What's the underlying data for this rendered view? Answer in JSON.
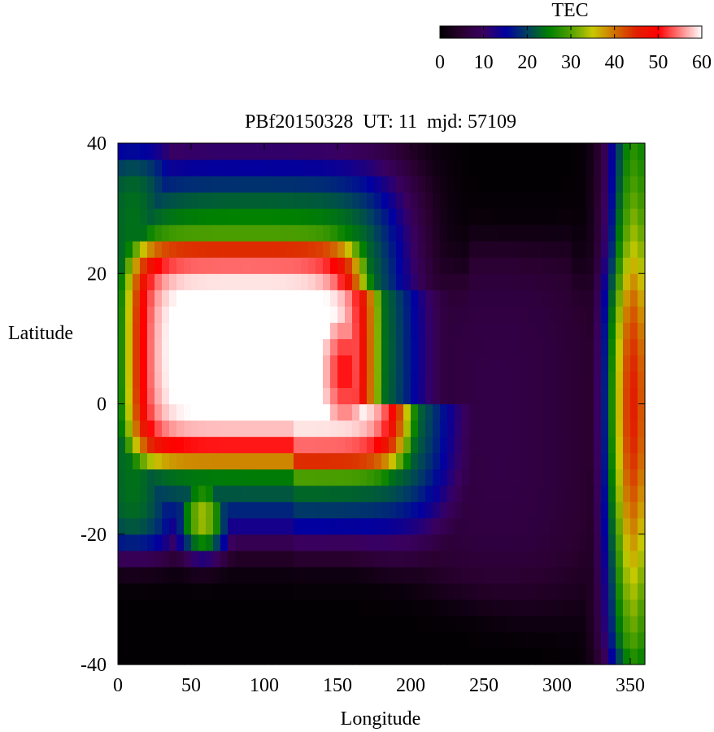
{
  "chart_data": {
    "type": "heatmap",
    "title": "PBf20150328  UT: 11  mjd: 57109",
    "xlabel": "Longitude",
    "ylabel": "Latitude",
    "xlim": [
      0,
      360
    ],
    "ylim": [
      -40,
      40
    ],
    "x_ticks": [
      "0",
      "50",
      "100",
      "150",
      "200",
      "250",
      "300",
      "350"
    ],
    "y_ticks": [
      "-40",
      "-20",
      "0",
      "20",
      "40"
    ],
    "colorbar": {
      "label": "TEC",
      "range": [
        0,
        60
      ],
      "ticks": [
        "0",
        "10",
        "20",
        "30",
        "40",
        "50",
        "60"
      ],
      "colormap": [
        {
          "v": 0,
          "color": "#000000"
        },
        {
          "v": 5,
          "color": "#2a0030"
        },
        {
          "v": 10,
          "color": "#3a0060"
        },
        {
          "v": 15,
          "color": "#0000a0"
        },
        {
          "v": 20,
          "color": "#004060"
        },
        {
          "v": 25,
          "color": "#008000"
        },
        {
          "v": 30,
          "color": "#50a000"
        },
        {
          "v": 35,
          "color": "#c8c800"
        },
        {
          "v": 40,
          "color": "#d07000"
        },
        {
          "v": 45,
          "color": "#e02000"
        },
        {
          "v": 50,
          "color": "#ff0000"
        },
        {
          "v": 55,
          "color": "#ff8080"
        },
        {
          "v": 60,
          "color": "#ffffff"
        }
      ]
    },
    "grid_resolution": {
      "lon_step": 5,
      "lat_step": 2.5
    },
    "field_features": {
      "main_crest": {
        "lon_range": [
          5,
          190
        ],
        "lat_range": [
          -10,
          26
        ],
        "peak_tec": 62
      },
      "secondary_bump": {
        "lon_center": 155,
        "lat_center": 5,
        "value": 50
      },
      "southern_lobe": {
        "lon_center": 58,
        "lat_top": -12,
        "lat_bottom": -24,
        "value": 38
      },
      "eastern_band": {
        "lon_center": 352,
        "lat_range": [
          -40,
          40
        ],
        "peak_tec": 45
      },
      "night_floor": {
        "value": 2
      }
    }
  }
}
